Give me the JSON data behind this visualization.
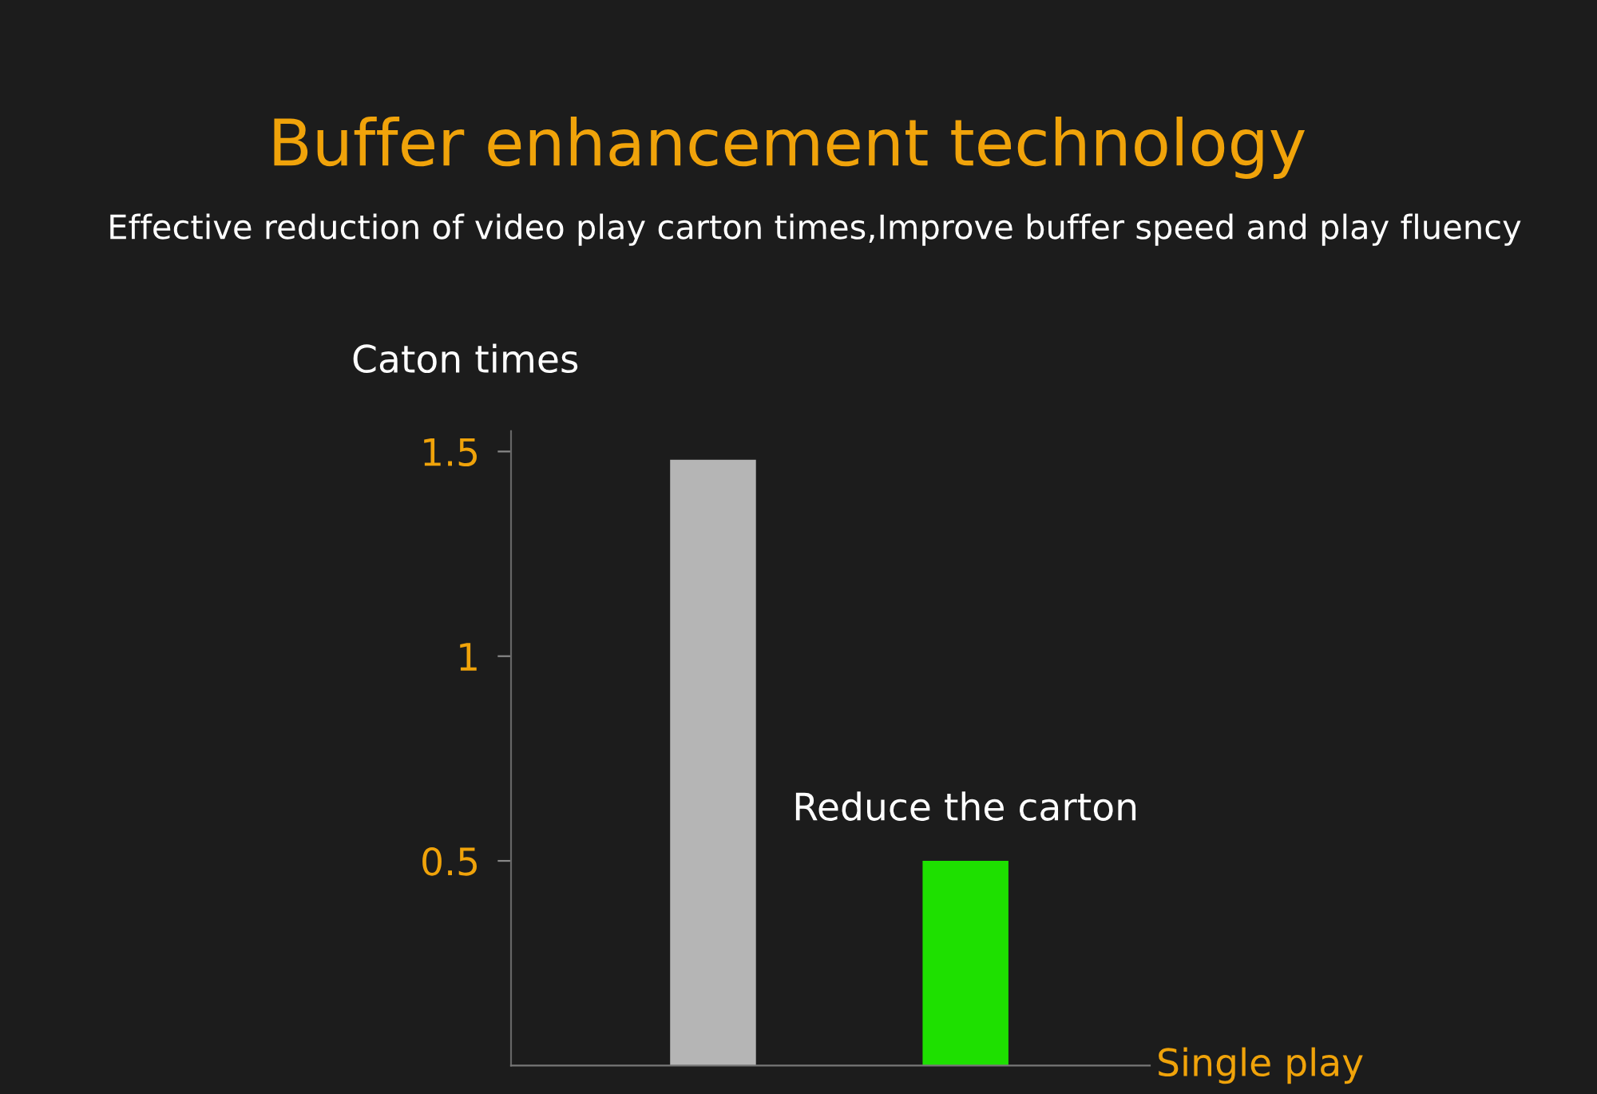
{
  "chart_data": {
    "type": "bar",
    "title": "Buffer enhancement technology",
    "subtitle": "Effective reduction of video play carton times,Improve buffer speed and play fluency",
    "categories": [
      null,
      null
    ],
    "values": [
      1.48,
      0.5
    ],
    "colors": [
      "#b5b5b5",
      "#1ee000"
    ],
    "xlabel": "Single play",
    "ylabel": "Caton times",
    "ylim": [
      0,
      1.55
    ],
    "yticks": [
      0.5,
      1,
      1.5
    ],
    "tick_labels": "y",
    "grid": false,
    "legend": false,
    "annotations": [
      "Reduce the carton"
    ]
  }
}
